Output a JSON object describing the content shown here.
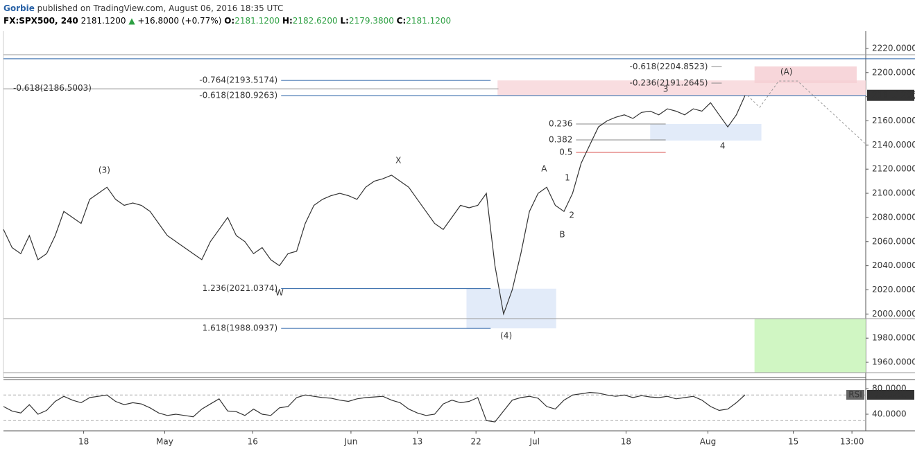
{
  "header": {
    "line1": [
      {
        "text": "Gorbie",
        "color": "#2962a6",
        "bold": true
      },
      {
        "text": " published on TradingView.com, August 06, 2016 18:35 UTC",
        "color": "#333",
        "bold": false
      }
    ],
    "line2": [
      {
        "text": "FX:SPX500, 240",
        "color": "#000",
        "bold": true
      },
      {
        "text": " 2181.1200 ",
        "color": "#000",
        "bold": false
      },
      {
        "text": "▲",
        "color": "#2ea043",
        "bold": false
      },
      {
        "text": " +16.8000 (+0.77%) ",
        "color": "#000",
        "bold": false
      },
      {
        "text": "O:",
        "color": "#000",
        "bold": true
      },
      {
        "text": "2181.1200 ",
        "color": "#2ea043",
        "bold": false
      },
      {
        "text": "H:",
        "color": "#000",
        "bold": true
      },
      {
        "text": "2182.6200 ",
        "color": "#2ea043",
        "bold": false
      },
      {
        "text": "L:",
        "color": "#000",
        "bold": true
      },
      {
        "text": "2179.3800 ",
        "color": "#2ea043",
        "bold": false
      },
      {
        "text": "C:",
        "color": "#000",
        "bold": true
      },
      {
        "text": "2181.1200",
        "color": "#2ea043",
        "bold": false
      }
    ]
  },
  "chart_data": [
    {
      "type": "line",
      "color": "#333",
      "x": [
        1,
        2,
        3,
        4,
        5,
        6,
        7,
        8,
        9,
        10,
        11,
        12,
        13,
        14,
        15,
        16,
        17,
        18,
        19,
        20,
        21,
        22,
        23,
        24,
        25,
        26,
        27,
        28,
        29,
        30,
        31,
        32,
        33,
        34,
        35,
        36,
        37,
        38,
        39,
        40,
        41,
        42,
        43,
        44,
        45,
        46,
        47,
        48,
        49,
        50,
        51,
        52,
        53,
        54,
        55,
        56,
        57,
        58,
        59,
        60,
        61,
        62,
        63,
        64,
        65,
        66,
        67,
        68,
        69,
        70,
        71,
        72,
        73,
        74,
        75,
        76,
        77,
        78,
        79,
        80,
        81,
        82,
        83,
        84,
        85,
        86,
        87
      ],
      "values": [
        2070,
        2055,
        2050,
        2065,
        2045,
        2050,
        2065,
        2085,
        2080,
        2075,
        2095,
        2100,
        2105,
        2095,
        2090,
        2092,
        2090,
        2085,
        2075,
        2065,
        2060,
        2055,
        2050,
        2045,
        2060,
        2070,
        2080,
        2065,
        2060,
        2050,
        2055,
        2045,
        2040,
        2050,
        2052,
        2075,
        2090,
        2095,
        2098,
        2100,
        2098,
        2095,
        2105,
        2110,
        2112,
        2115,
        2110,
        2105,
        2095,
        2085,
        2075,
        2070,
        2080,
        2090,
        2088,
        2090,
        2100,
        2040,
        2000,
        2020,
        2050,
        2085,
        2100,
        2105,
        2090,
        2085,
        2100,
        2125,
        2140,
        2155,
        2160,
        2163,
        2165,
        2162,
        2167,
        2168,
        2165,
        2170,
        2168,
        2165,
        2170,
        2168,
        2175,
        2165,
        2155,
        2165,
        2181.12
      ],
      "last_label": "2181.1200",
      "xlim": [
        1,
        101
      ],
      "ylim": [
        1947.4,
        2234.3
      ],
      "xticks": [
        {
          "value": 10.3,
          "label": "18"
        },
        {
          "value": 19.7,
          "label": "May"
        },
        {
          "value": 29.9,
          "label": "16"
        },
        {
          "value": 41.3,
          "label": "Jun"
        },
        {
          "value": 49.0,
          "label": "13"
        },
        {
          "value": 55.8,
          "label": "22"
        },
        {
          "value": 62.6,
          "label": "Jul"
        },
        {
          "value": 73.2,
          "label": "18"
        },
        {
          "value": 82.7,
          "label": "Aug"
        },
        {
          "value": 92.6,
          "label": "15"
        },
        {
          "value": 99.4,
          "label": "13:00"
        }
      ],
      "yticks": [
        {
          "value": 1960,
          "label": "1960.0000"
        },
        {
          "value": 1980,
          "label": "1980.0000"
        },
        {
          "value": 2000,
          "label": "2000.0000"
        },
        {
          "value": 2020,
          "label": "2020.0000"
        },
        {
          "value": 2040,
          "label": "2040.0000"
        },
        {
          "value": 2060,
          "label": "2060.0000"
        },
        {
          "value": 2080,
          "label": "2080.0000"
        },
        {
          "value": 2100,
          "label": "2100.0000"
        },
        {
          "value": 2120,
          "label": "2120.0000"
        },
        {
          "value": 2140,
          "label": "2140.0000"
        },
        {
          "value": 2160,
          "label": "2160.0000"
        },
        {
          "value": 2180,
          "label": "2180.0000"
        },
        {
          "value": 2200,
          "label": "2200.0000"
        },
        {
          "value": 2220,
          "label": "2220.0000"
        }
      ],
      "hlines": [
        {
          "price": 2214.8,
          "color": "#999"
        },
        {
          "price": 2211.4,
          "color": "#2962a6"
        },
        {
          "price": 1996.2,
          "color": "#999"
        },
        {
          "price": 1951.4,
          "color": "#999"
        }
      ],
      "boxes": [
        {
          "x": [
            58.3,
            101
          ],
          "y": [
            2180.9,
            2193.5
          ],
          "color": "#f8d7da"
        },
        {
          "x": [
            88.1,
            99.95
          ],
          "y": [
            2191.3,
            2205.1
          ],
          "color": "#f6cfd3"
        },
        {
          "x": [
            54.7,
            65.1
          ],
          "y": [
            1988.1,
            2021.0
          ],
          "color": "#dde7f8"
        },
        {
          "x": [
            76.0,
            88.9
          ],
          "y": [
            2143.7,
            2157.4
          ],
          "color": "#dde7f8"
        },
        {
          "x": [
            88.1,
            101
          ],
          "y": [
            1951.4,
            1996.2
          ],
          "color": "#c8f5b8"
        }
      ],
      "levels": [
        {
          "label": "-0.618(2186.5003)",
          "price": 2186.5003,
          "x": [
            1,
            58.4
          ],
          "color": "#888",
          "label_pos": "above"
        },
        {
          "label": "-0.764(2193.5174)",
          "price": 2193.5174,
          "x": [
            33.2,
            57.5
          ],
          "color": "#2962a6",
          "label_pos": "before"
        },
        {
          "label": "-0.618(2180.9263)",
          "price": 2180.9263,
          "x": [
            33.2,
            101
          ],
          "color": "#2962a6",
          "label_pos": "before"
        },
        {
          "label": "1.236(2021.0374)",
          "price": 2021.0374,
          "x": [
            33.2,
            57.5
          ],
          "color": "#2962a6",
          "label_pos": "before"
        },
        {
          "label": "1.618(1988.0937)",
          "price": 1988.0937,
          "x": [
            33.2,
            57.5
          ],
          "color": "#2962a6",
          "label_pos": "before"
        },
        {
          "label": "0.236",
          "price": 2157.4,
          "x": [
            67.4,
            77.8
          ],
          "color": "#888",
          "label_pos": "before"
        },
        {
          "label": "0.382",
          "price": 2144.2,
          "x": [
            67.4,
            77.8
          ],
          "color": "#888",
          "label_pos": "before"
        },
        {
          "label": "0.5",
          "price": 2133.9,
          "x": [
            67.4,
            77.8
          ],
          "color": "#d9534f",
          "label_pos": "before"
        },
        {
          "label": "-0.618(2204.8523)",
          "price": 2204.8523,
          "x": [
            83.1,
            84.3
          ],
          "color": "#888",
          "label_pos": "before"
        },
        {
          "label": "-0.236(2191.2645)",
          "price": 2191.2645,
          "x": [
            83.1,
            84.3
          ],
          "color": "#888",
          "label_pos": "before"
        }
      ],
      "waves": [
        {
          "label": "(3)",
          "x": 12.7,
          "y": 2119,
          "color": "#2962a6"
        },
        {
          "label": "X",
          "x": 46.8,
          "y": 2127,
          "color": "#222"
        },
        {
          "label": "W",
          "x": 33.0,
          "y": 2017.4,
          "color": "#222"
        },
        {
          "label": "(4)",
          "x": 59.3,
          "y": 1981.8,
          "color": "#2962a6"
        },
        {
          "label": "A",
          "x": 63.7,
          "y": 2120.1,
          "color": "#222"
        },
        {
          "label": "1",
          "x": 66.4,
          "y": 2112.7,
          "color": "#222"
        },
        {
          "label": "2",
          "x": 66.9,
          "y": 2081.7,
          "color": "#222"
        },
        {
          "label": "B",
          "x": 65.8,
          "y": 2065.6,
          "color": "#222"
        },
        {
          "label": "3",
          "x": 77.8,
          "y": 2186.1,
          "color": "#222"
        },
        {
          "label": "4",
          "x": 84.4,
          "y": 2139.1,
          "color": "#222"
        },
        {
          "label": "(A)",
          "x": 91.8,
          "y": 2200.5,
          "color": "#5b4db0"
        }
      ],
      "projection": {
        "x": [
          87.3,
          88.7,
          90.9,
          93.1,
          101
        ],
        "y": [
          2181.0,
          2171.2,
          2193.0,
          2193.0,
          2140.8
        ]
      }
    },
    {
      "type": "line",
      "title": "RSI",
      "color": "#333",
      "x": [
        1,
        2,
        3,
        4,
        5,
        6,
        7,
        8,
        9,
        10,
        11,
        12,
        13,
        14,
        15,
        16,
        17,
        18,
        19,
        20,
        21,
        22,
        23,
        24,
        25,
        26,
        27,
        28,
        29,
        30,
        31,
        32,
        33,
        34,
        35,
        36,
        37,
        38,
        39,
        40,
        41,
        42,
        43,
        44,
        45,
        46,
        47,
        48,
        49,
        50,
        51,
        52,
        53,
        54,
        55,
        56,
        57,
        58,
        59,
        60,
        61,
        62,
        63,
        64,
        65,
        66,
        67,
        68,
        69,
        70,
        71,
        72,
        73,
        74,
        75,
        76,
        77,
        78,
        79,
        80,
        81,
        82,
        83,
        84,
        85,
        86,
        87
      ],
      "values": [
        52,
        45,
        42,
        55,
        40,
        46,
        60,
        68,
        62,
        58,
        66,
        68,
        70,
        60,
        55,
        58,
        56,
        50,
        42,
        38,
        40,
        38,
        36,
        48,
        56,
        64,
        45,
        44,
        38,
        48,
        40,
        38,
        50,
        52,
        66,
        70,
        68,
        66,
        65,
        62,
        60,
        64,
        66,
        67,
        68,
        62,
        58,
        48,
        42,
        38,
        40,
        56,
        62,
        58,
        60,
        66,
        30,
        28,
        45,
        62,
        66,
        68,
        65,
        52,
        48,
        62,
        70,
        72,
        74,
        73,
        70,
        68,
        70,
        66,
        69,
        67,
        66,
        68,
        64,
        66,
        68,
        62,
        52,
        46,
        48,
        58,
        70.3255
      ],
      "last_label": "70.3255",
      "xlim": [
        1,
        101
      ],
      "ylim": [
        14,
        92
      ],
      "yticks": [
        {
          "value": 40,
          "label": "40.0000"
        },
        {
          "value": 80,
          "label": "80.0000"
        }
      ],
      "bands": [
        70,
        30
      ]
    }
  ]
}
